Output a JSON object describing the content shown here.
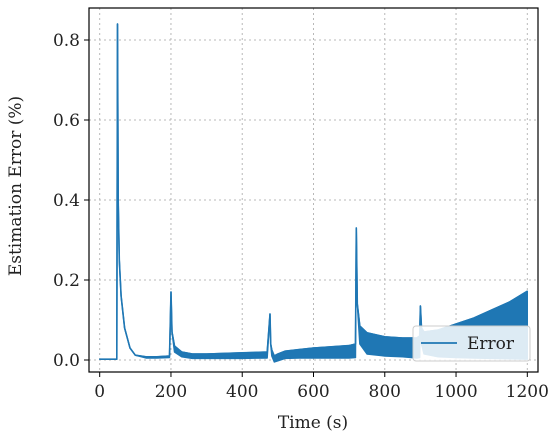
{
  "chart_data": {
    "type": "line",
    "title": "",
    "xlabel": "Time (s)",
    "ylabel": "Estimation Error (%)",
    "xlim": [
      -30,
      1230
    ],
    "ylim": [
      -0.03,
      0.88
    ],
    "xticks": [
      0,
      200,
      400,
      600,
      800,
      1000,
      1200
    ],
    "yticks": [
      0.0,
      0.2,
      0.4,
      0.6,
      0.8
    ],
    "xtick_labels": [
      "0",
      "200",
      "400",
      "600",
      "800",
      "1000",
      "1200"
    ],
    "ytick_labels": [
      "0.0",
      "0.2",
      "0.4",
      "0.6",
      "0.8"
    ],
    "grid": true,
    "legend_position": "lower-right",
    "series": [
      {
        "name": "Error",
        "color": "#1f77b4",
        "x": [
          0,
          48,
          50,
          52,
          55,
          60,
          70,
          85,
          100,
          130,
          160,
          196,
          200,
          203,
          210,
          230,
          260,
          300,
          400,
          470,
          478,
          480,
          483,
          490,
          500,
          520,
          560,
          600,
          650,
          700,
          718,
          720,
          723,
          730,
          750,
          800,
          850,
          890,
          898,
          900,
          903,
          910,
          950,
          1000,
          1050,
          1100,
          1150,
          1200
        ],
        "y_upper": [
          0.002,
          0.002,
          0.84,
          0.4,
          0.25,
          0.16,
          0.08,
          0.03,
          0.012,
          0.008,
          0.008,
          0.01,
          0.17,
          0.07,
          0.035,
          0.02,
          0.015,
          0.015,
          0.018,
          0.02,
          0.115,
          0.04,
          0.025,
          0.01,
          0.015,
          0.022,
          0.026,
          0.03,
          0.033,
          0.036,
          0.04,
          0.33,
          0.14,
          0.085,
          0.068,
          0.058,
          0.055,
          0.055,
          0.06,
          0.135,
          0.08,
          0.07,
          0.075,
          0.09,
          0.105,
          0.125,
          0.145,
          0.172
        ],
        "y_lower": [
          0.002,
          0.002,
          0.84,
          0.4,
          0.25,
          0.16,
          0.08,
          0.03,
          0.012,
          0.005,
          0.005,
          0.006,
          0.17,
          0.07,
          0.02,
          0.008,
          0.004,
          0.004,
          0.004,
          0.005,
          0.115,
          0.04,
          0.01,
          -0.005,
          -0.002,
          0.004,
          0.005,
          0.005,
          0.005,
          0.005,
          0.006,
          0.33,
          0.14,
          0.04,
          0.015,
          0.01,
          0.008,
          0.005,
          0.006,
          0.135,
          0.04,
          0.015,
          0.008,
          0.006,
          0.005,
          0.004,
          0.003,
          0.002
        ]
      }
    ]
  }
}
